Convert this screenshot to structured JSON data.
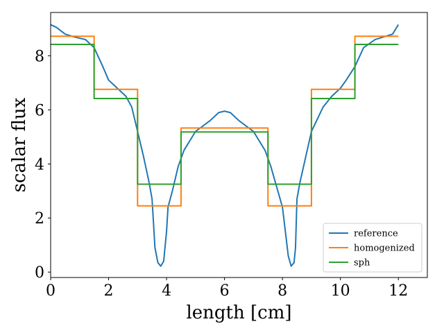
{
  "chart_data": {
    "type": "line",
    "title": "",
    "xlabel": "length [cm]",
    "ylabel": "scalar flux",
    "xlim": [
      0,
      13
    ],
    "ylim": [
      -0.2,
      9.6
    ],
    "xticks": [
      0,
      2,
      4,
      6,
      8,
      10,
      12
    ],
    "yticks": [
      0,
      2,
      4,
      6,
      8
    ],
    "grid": false,
    "legend_position": "lower-right",
    "series": [
      {
        "name": "reference",
        "color": "#1f77b4",
        "step": false,
        "x": [
          0,
          0.2,
          0.5,
          0.8,
          1.2,
          1.5,
          1.8,
          2.0,
          2.3,
          2.6,
          2.8,
          3.0,
          3.2,
          3.4,
          3.5,
          3.55,
          3.6,
          3.7,
          3.8,
          3.9,
          4.0,
          4.05,
          4.2,
          4.4,
          4.6,
          5.0,
          5.5,
          5.8,
          6.0,
          6.2,
          6.5,
          7.0,
          7.4,
          7.6,
          8.0,
          8.1,
          8.2,
          8.3,
          8.4,
          8.45,
          8.5,
          8.6,
          9.0,
          9.4,
          9.7,
          10.0,
          10.2,
          10.5,
          10.8,
          11.2,
          11.5,
          11.8,
          12.0
        ],
        "y": [
          9.15,
          9.05,
          8.8,
          8.7,
          8.6,
          8.3,
          7.6,
          7.1,
          6.8,
          6.5,
          6.1,
          5.2,
          4.3,
          3.3,
          2.7,
          1.8,
          0.9,
          0.35,
          0.22,
          0.4,
          1.5,
          2.4,
          3.0,
          3.9,
          4.5,
          5.2,
          5.6,
          5.9,
          5.95,
          5.9,
          5.6,
          5.2,
          4.5,
          3.9,
          2.4,
          1.5,
          0.6,
          0.22,
          0.35,
          0.9,
          2.7,
          3.3,
          5.2,
          6.1,
          6.5,
          6.8,
          7.1,
          7.6,
          8.3,
          8.6,
          8.7,
          8.8,
          9.15
        ]
      },
      {
        "name": "homogenized",
        "color": "#ff7f0e",
        "step": true,
        "edges": [
          0,
          1.5,
          3,
          4.5,
          7.5,
          9,
          10.5,
          12
        ],
        "values": [
          8.72,
          6.76,
          2.45,
          5.33,
          2.45,
          6.76,
          8.72
        ]
      },
      {
        "name": "sph",
        "color": "#2ca02c",
        "step": true,
        "edges": [
          0,
          1.5,
          3,
          4.5,
          7.5,
          9,
          10.5,
          12
        ],
        "values": [
          8.42,
          6.42,
          3.25,
          5.18,
          3.25,
          6.42,
          8.42
        ]
      }
    ]
  }
}
